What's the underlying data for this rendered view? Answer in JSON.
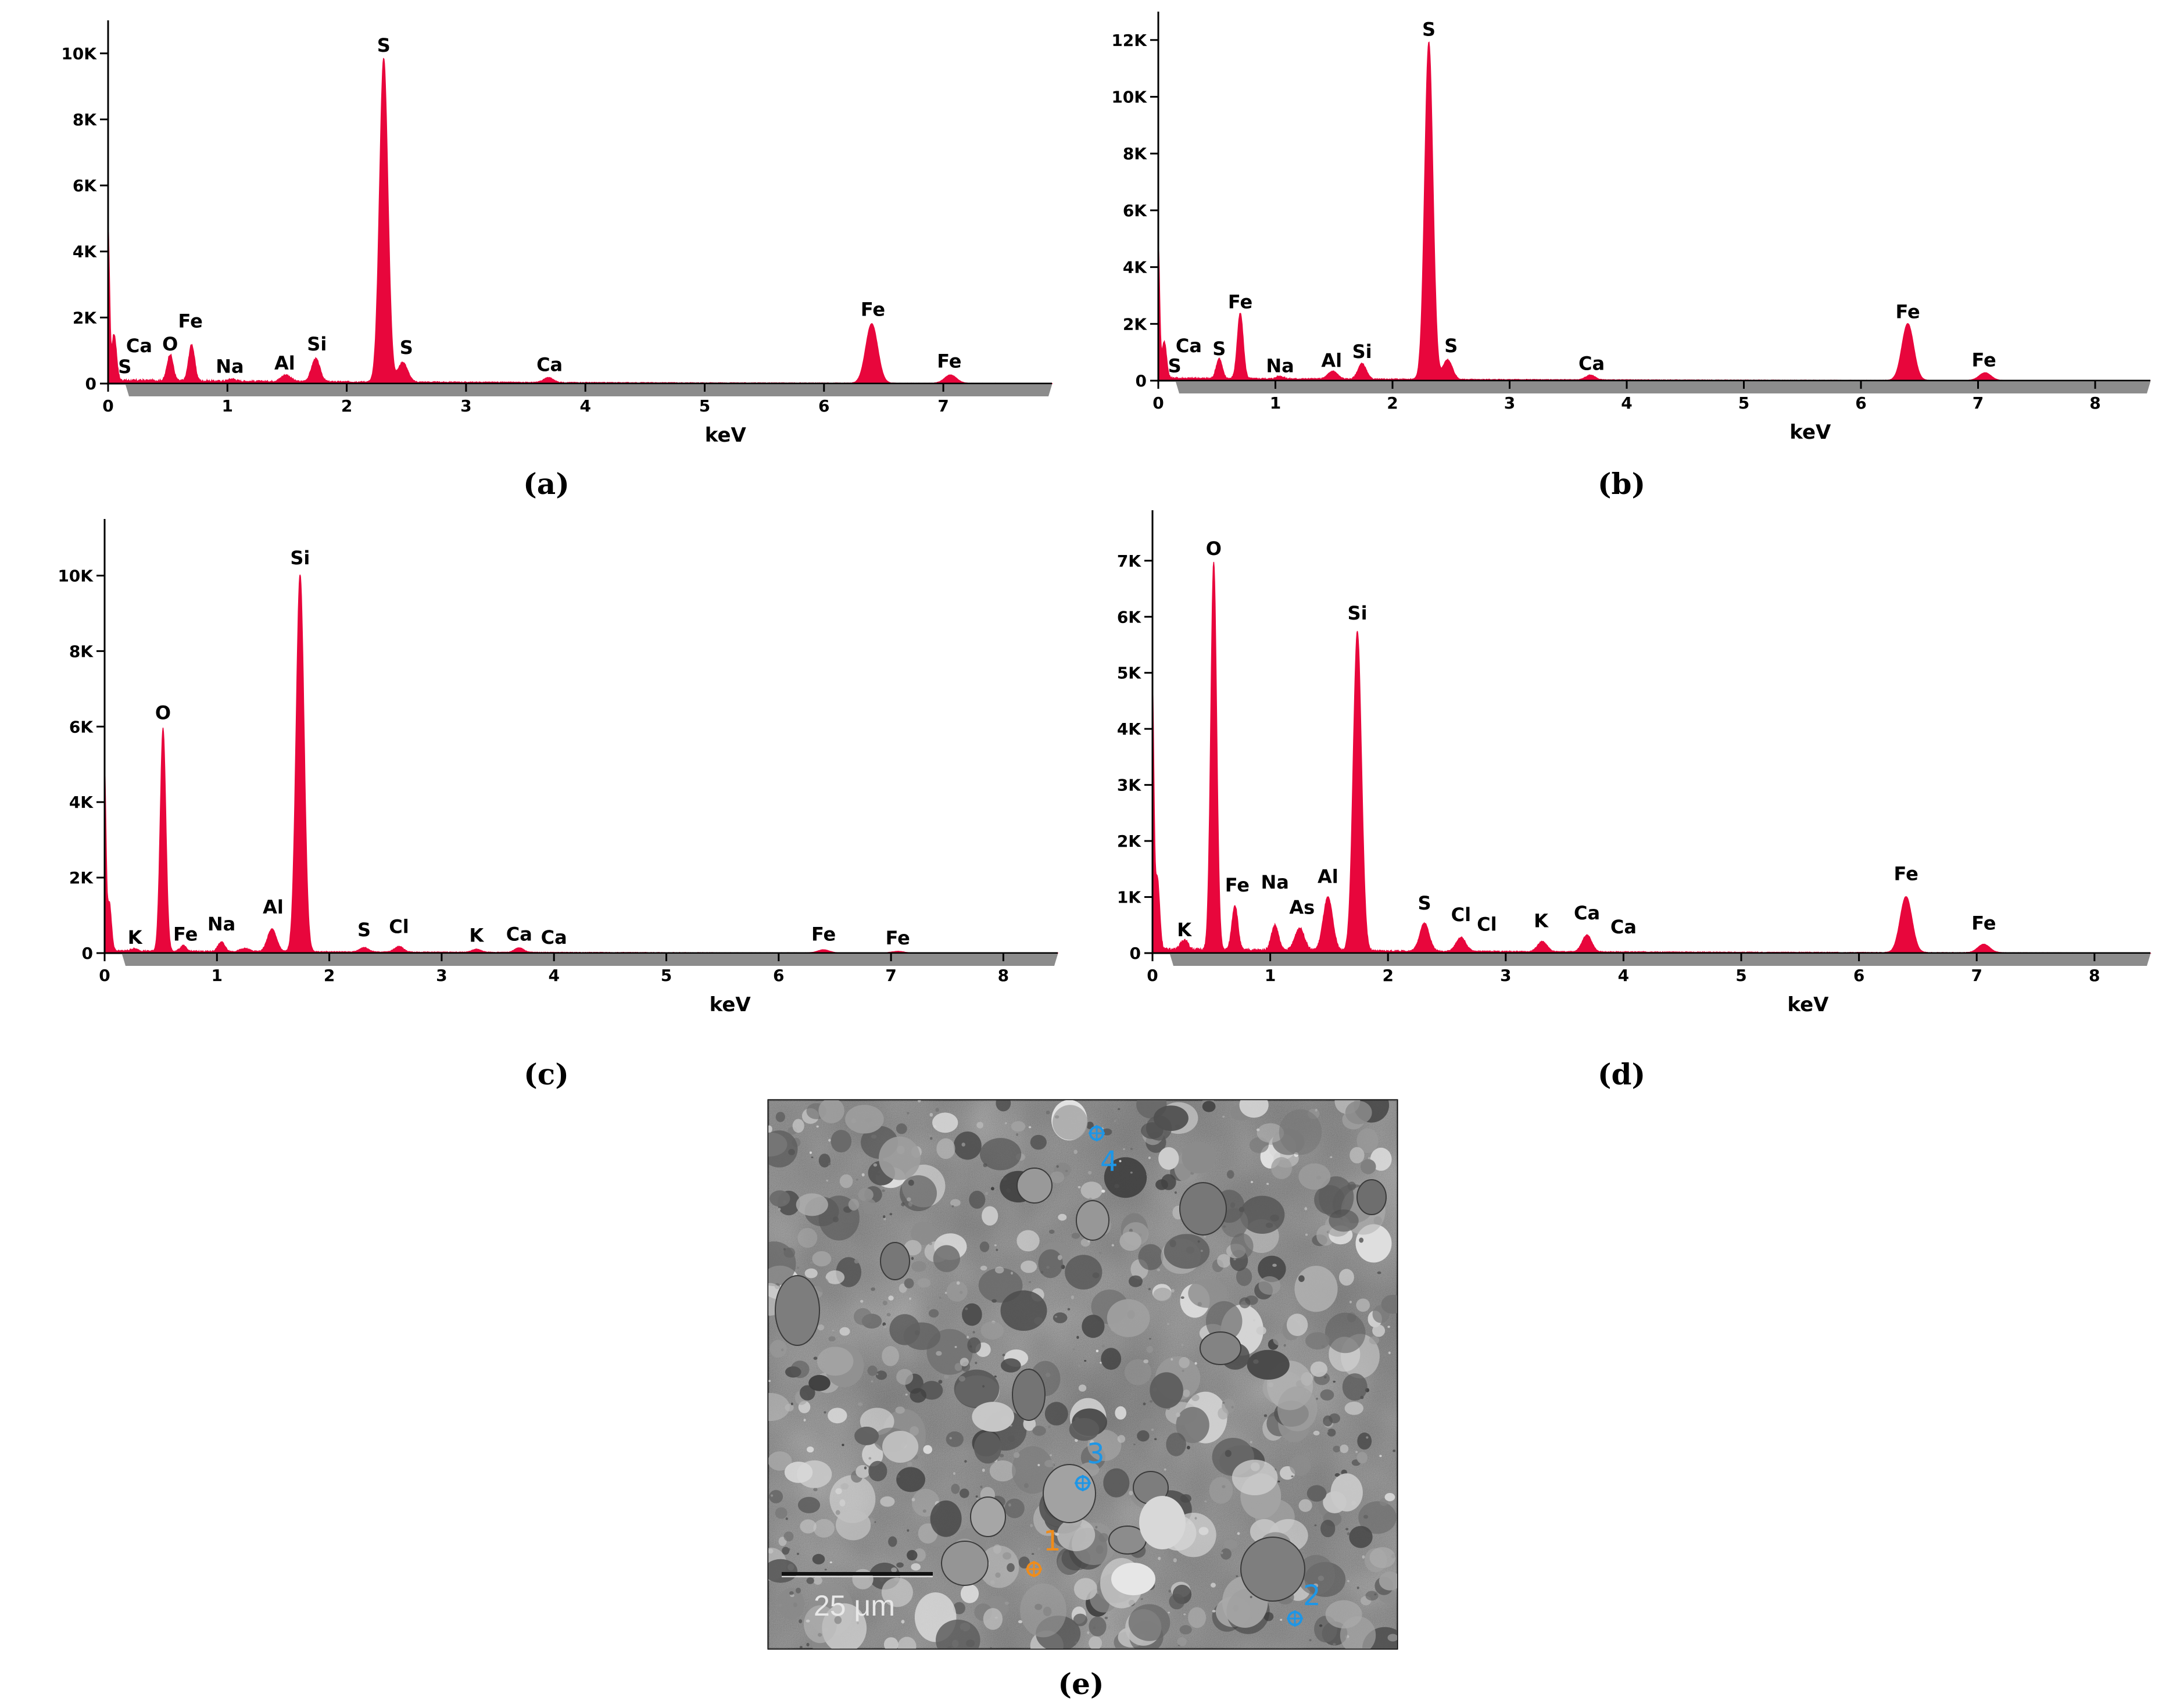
{
  "colors": {
    "spectrum": "#e8063c",
    "axis": "#000000",
    "shadow": "#8c8c8c",
    "marker_orange": "#f08c1a",
    "marker_blue": "#1e96e6"
  },
  "chart_data": [
    {
      "id": "a",
      "type": "area",
      "caption": "(a)",
      "xlabel": "keV",
      "ylabel": "",
      "xlim": [
        0,
        7.9
      ],
      "ylim": [
        0,
        11000
      ],
      "xticks": [
        0,
        1,
        2,
        3,
        4,
        5,
        6,
        7
      ],
      "xtick_labels": [
        "0",
        "1",
        "2",
        "3",
        "4",
        "5",
        "6",
        "7"
      ],
      "yticks": [
        0,
        2000,
        4000,
        6000,
        8000,
        10000
      ],
      "ytick_labels": [
        "0",
        "2K",
        "4K",
        "6K",
        "8K",
        "10K"
      ],
      "series": [
        {
          "peaks": [
            [
              0.0,
              4600,
              0.012
            ],
            [
              0.05,
              1400,
              0.02
            ],
            [
              0.52,
              800,
              0.025
            ],
            [
              0.7,
              1100,
              0.025
            ],
            [
              1.04,
              70,
              0.03
            ],
            [
              1.49,
              200,
              0.04
            ],
            [
              1.74,
              700,
              0.035
            ],
            [
              2.31,
              9800,
              0.035
            ],
            [
              2.47,
              600,
              0.04
            ],
            [
              3.69,
              150,
              0.04
            ],
            [
              6.4,
              1800,
              0.05
            ],
            [
              7.06,
              250,
              0.05
            ]
          ],
          "baseline": 100
        }
      ],
      "annotations": [
        {
          "label": "S",
          "x": 0.14,
          "y": 320
        },
        {
          "label": "Ca",
          "x": 0.26,
          "y": 950
        },
        {
          "label": "O",
          "x": 0.52,
          "y": 1000
        },
        {
          "label": "Fe",
          "x": 0.69,
          "y": 1700
        },
        {
          "label": "Na",
          "x": 1.02,
          "y": 330
        },
        {
          "label": "Al",
          "x": 1.48,
          "y": 420
        },
        {
          "label": "Si",
          "x": 1.75,
          "y": 1000
        },
        {
          "label": "S",
          "x": 2.31,
          "y": 10050
        },
        {
          "label": "S",
          "x": 2.5,
          "y": 900
        },
        {
          "label": "Ca",
          "x": 3.7,
          "y": 380
        },
        {
          "label": "Fe",
          "x": 6.41,
          "y": 2050
        },
        {
          "label": "Fe",
          "x": 7.05,
          "y": 480
        }
      ]
    },
    {
      "id": "b",
      "type": "area",
      "caption": "(b)",
      "xlabel": "keV",
      "ylabel": "",
      "xlim": [
        0,
        8.5
      ],
      "ylim": [
        0,
        13000
      ],
      "xticks": [
        0,
        1,
        2,
        3,
        4,
        5,
        6,
        7,
        8
      ],
      "xtick_labels": [
        "0",
        "1",
        "2",
        "3",
        "4",
        "5",
        "6",
        "7",
        "8"
      ],
      "yticks": [
        0,
        2000,
        4000,
        6000,
        8000,
        10000,
        12000
      ],
      "ytick_labels": [
        "0",
        "2K",
        "4K",
        "6K",
        "8K",
        "10K",
        "12K"
      ],
      "series": [
        {
          "peaks": [
            [
              0.0,
              4600,
              0.012
            ],
            [
              0.05,
              1300,
              0.02
            ],
            [
              0.52,
              700,
              0.025
            ],
            [
              0.7,
              2300,
              0.025
            ],
            [
              1.04,
              90,
              0.03
            ],
            [
              1.49,
              280,
              0.04
            ],
            [
              1.74,
              550,
              0.035
            ],
            [
              2.31,
              11900,
              0.035
            ],
            [
              2.47,
              700,
              0.04
            ],
            [
              3.69,
              170,
              0.04
            ],
            [
              6.4,
              2000,
              0.05
            ],
            [
              7.06,
              270,
              0.05
            ]
          ],
          "baseline": 90
        }
      ],
      "annotations": [
        {
          "label": "S",
          "x": 0.14,
          "y": 300
        },
        {
          "label": "Ca",
          "x": 0.26,
          "y": 1000
        },
        {
          "label": "S",
          "x": 0.52,
          "y": 900
        },
        {
          "label": "Fe",
          "x": 0.7,
          "y": 2550
        },
        {
          "label": "Na",
          "x": 1.04,
          "y": 300
        },
        {
          "label": "Al",
          "x": 1.48,
          "y": 480
        },
        {
          "label": "Si",
          "x": 1.74,
          "y": 800
        },
        {
          "label": "S",
          "x": 2.31,
          "y": 12150
        },
        {
          "label": "S",
          "x": 2.5,
          "y": 1000
        },
        {
          "label": "Ca",
          "x": 3.7,
          "y": 380
        },
        {
          "label": "Fe",
          "x": 6.4,
          "y": 2200
        },
        {
          "label": "Fe",
          "x": 7.05,
          "y": 500
        }
      ]
    },
    {
      "id": "c",
      "type": "area",
      "caption": "(c)",
      "xlabel": "keV",
      "ylabel": "",
      "xlim": [
        0,
        8.5
      ],
      "ylim": [
        0,
        11500
      ],
      "xticks": [
        0,
        1,
        2,
        3,
        4,
        5,
        6,
        7,
        8
      ],
      "xtick_labels": [
        "0",
        "1",
        "2",
        "3",
        "4",
        "5",
        "6",
        "7",
        "8"
      ],
      "yticks": [
        0,
        2000,
        4000,
        6000,
        8000,
        10000
      ],
      "ytick_labels": [
        "0",
        "2K",
        "4K",
        "6K",
        "8K",
        "10K"
      ],
      "series": [
        {
          "peaks": [
            [
              0.0,
              4600,
              0.012
            ],
            [
              0.04,
              1300,
              0.02
            ],
            [
              0.26,
              60,
              0.03
            ],
            [
              0.52,
              5900,
              0.025
            ],
            [
              0.7,
              150,
              0.025
            ],
            [
              1.04,
              250,
              0.03
            ],
            [
              1.25,
              80,
              0.04
            ],
            [
              1.49,
              600,
              0.04
            ],
            [
              1.74,
              10000,
              0.035
            ],
            [
              2.31,
              120,
              0.04
            ],
            [
              2.62,
              150,
              0.04
            ],
            [
              3.31,
              80,
              0.04
            ],
            [
              3.69,
              120,
              0.04
            ],
            [
              6.4,
              80,
              0.05
            ],
            [
              7.06,
              40,
              0.05
            ]
          ],
          "baseline": 60
        }
      ],
      "annotations": [
        {
          "label": "K",
          "x": 0.27,
          "y": 250
        },
        {
          "label": "Fe",
          "x": 0.72,
          "y": 330
        },
        {
          "label": "Na",
          "x": 1.04,
          "y": 600
        },
        {
          "label": "Al",
          "x": 1.5,
          "y": 1050
        },
        {
          "label": "Si",
          "x": 1.74,
          "y": 10300
        },
        {
          "label": "O",
          "x": 0.52,
          "y": 6200
        },
        {
          "label": "S",
          "x": 2.31,
          "y": 450
        },
        {
          "label": "Cl",
          "x": 2.62,
          "y": 530
        },
        {
          "label": "K",
          "x": 3.31,
          "y": 300
        },
        {
          "label": "Ca",
          "x": 3.69,
          "y": 330
        },
        {
          "label": "Ca",
          "x": 4.0,
          "y": 250
        },
        {
          "label": "Fe",
          "x": 6.4,
          "y": 330
        },
        {
          "label": "Fe",
          "x": 7.06,
          "y": 230
        }
      ]
    },
    {
      "id": "d",
      "type": "area",
      "caption": "(d)",
      "xlabel": "keV",
      "ylabel": "",
      "xlim": [
        0,
        8.5
      ],
      "ylim": [
        0,
        7900
      ],
      "xticks": [
        0,
        1,
        2,
        3,
        4,
        5,
        6,
        7,
        8
      ],
      "xtick_labels": [
        "0",
        "1",
        "2",
        "3",
        "4",
        "5",
        "6",
        "7",
        "8"
      ],
      "yticks": [
        0,
        1000,
        2000,
        3000,
        4000,
        5000,
        6000,
        7000
      ],
      "ytick_labels": [
        "0",
        "1K",
        "2K",
        "3K",
        "4K",
        "5K",
        "6K",
        "7K"
      ],
      "series": [
        {
          "peaks": [
            [
              0.0,
              4500,
              0.012
            ],
            [
              0.04,
              1300,
              0.02
            ],
            [
              0.27,
              180,
              0.03
            ],
            [
              0.52,
              6900,
              0.025
            ],
            [
              0.7,
              800,
              0.025
            ],
            [
              1.04,
              450,
              0.03
            ],
            [
              1.25,
              400,
              0.04
            ],
            [
              1.49,
              950,
              0.04
            ],
            [
              1.74,
              5700,
              0.035
            ],
            [
              2.31,
              500,
              0.04
            ],
            [
              2.62,
              250,
              0.04
            ],
            [
              3.31,
              180,
              0.04
            ],
            [
              3.69,
              300,
              0.04
            ],
            [
              6.4,
              1000,
              0.05
            ],
            [
              7.06,
              150,
              0.05
            ]
          ],
          "baseline": 70
        }
      ],
      "annotations": [
        {
          "label": "K",
          "x": 0.27,
          "y": 300
        },
        {
          "label": "O",
          "x": 0.52,
          "y": 7100
        },
        {
          "label": "Fe",
          "x": 0.72,
          "y": 1100
        },
        {
          "label": "Na",
          "x": 1.04,
          "y": 1150
        },
        {
          "label": "As",
          "x": 1.27,
          "y": 700
        },
        {
          "label": "Al",
          "x": 1.49,
          "y": 1250
        },
        {
          "label": "Si",
          "x": 1.74,
          "y": 5950
        },
        {
          "label": "S",
          "x": 2.31,
          "y": 780
        },
        {
          "label": "Cl",
          "x": 2.62,
          "y": 570
        },
        {
          "label": "Cl",
          "x": 2.84,
          "y": 400
        },
        {
          "label": "K",
          "x": 3.3,
          "y": 460
        },
        {
          "label": "Ca",
          "x": 3.69,
          "y": 600
        },
        {
          "label": "Ca",
          "x": 4.0,
          "y": 350
        },
        {
          "label": "Fe",
          "x": 6.4,
          "y": 1300
        },
        {
          "label": "Fe",
          "x": 7.06,
          "y": 420
        }
      ]
    }
  ],
  "sem_image": {
    "caption": "(e)",
    "scale_bar_label": "25 μm",
    "markers": [
      {
        "label": "1",
        "color": "orange"
      },
      {
        "label": "2",
        "color": "blue"
      },
      {
        "label": "3",
        "color": "blue"
      },
      {
        "label": "4",
        "color": "blue"
      }
    ]
  }
}
